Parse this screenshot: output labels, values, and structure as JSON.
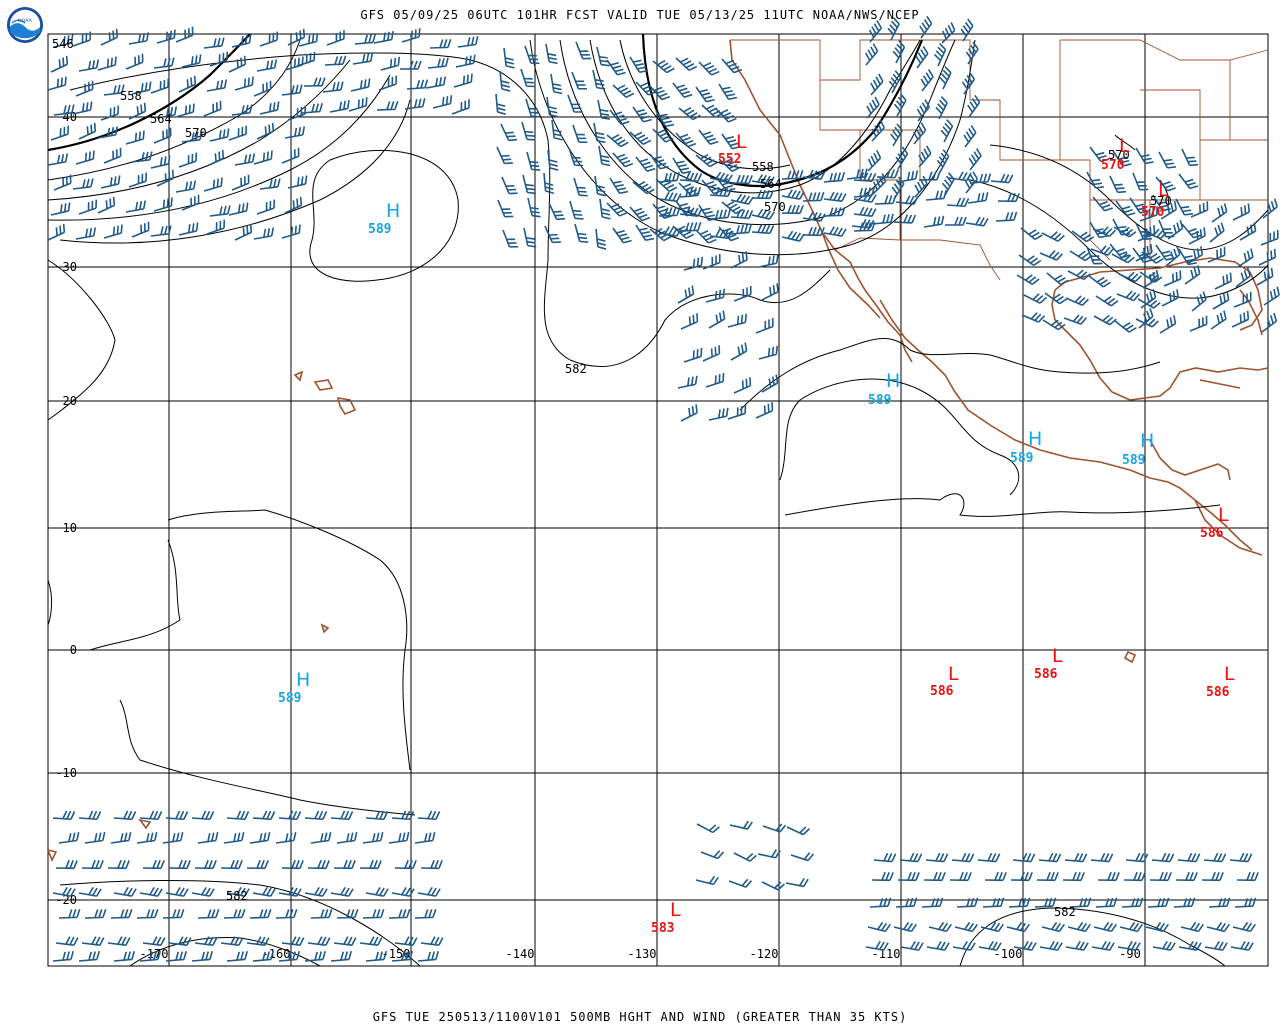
{
  "header": {
    "title": "GFS 05/09/25 06UTC 101HR FCST VALID TUE 05/13/25 11UTC NOAA/NWS/NCEP",
    "footer": "GFS TUE 250513/1100V101 500MB HGHT AND WIND (GREATER THAN 35 KTS)"
  },
  "logo": {
    "icon": "noaa-logo",
    "text": "NOAA"
  },
  "axes": {
    "lat_labels": [
      "40",
      "30",
      "20",
      "10",
      "0",
      "-10",
      "-20"
    ],
    "lon_labels": [
      "-170",
      "-160",
      "-150",
      "-140",
      "-130",
      "-120",
      "-110",
      "-100",
      "-90"
    ]
  },
  "contour_labels": [
    "546",
    "558",
    "564",
    "570",
    "582",
    "558",
    "564",
    "570",
    "570",
    "570",
    "582",
    "582"
  ],
  "pressure_centers": [
    {
      "type": "H",
      "value": "589"
    },
    {
      "type": "H",
      "value": "589"
    },
    {
      "type": "H",
      "value": "589"
    },
    {
      "type": "H",
      "value": "589"
    },
    {
      "type": "H",
      "value": "589"
    },
    {
      "type": "L",
      "value": "552"
    },
    {
      "type": "L",
      "value": "570"
    },
    {
      "type": "L",
      "value": "570"
    },
    {
      "type": "L",
      "value": "586"
    },
    {
      "type": "L",
      "value": "586"
    },
    {
      "type": "L",
      "value": "586"
    },
    {
      "type": "L",
      "value": "586"
    },
    {
      "type": "L",
      "value": "583"
    }
  ],
  "colors": {
    "high": "#13a6e6",
    "low": "#ee1111",
    "wind_barb": "#1f5a8a",
    "coastline": "#a0522d",
    "contour": "#000000",
    "grid": "#000000"
  }
}
